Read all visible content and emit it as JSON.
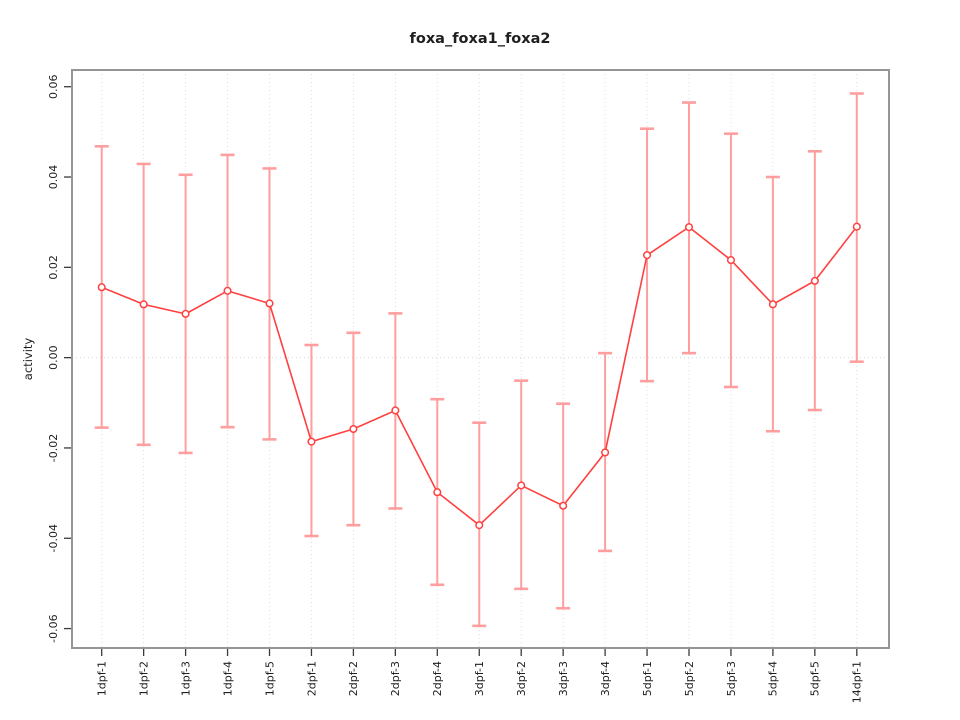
{
  "figure": {
    "title": "foxa_foxa1_foxa2",
    "ylabel": "activity"
  },
  "chart_data": {
    "type": "line",
    "title": "foxa_foxa1_foxa2",
    "xlabel": "",
    "ylabel": "activity",
    "legend": "none",
    "marker": "open-circle",
    "error_bars": true,
    "grid": "dotted vertical gridline at each category; dotted horizontal line at y=0",
    "categories": [
      "1dpf-1",
      "1dpf-2",
      "1dpf-3",
      "1dpf-4",
      "1dpf-5",
      "2dpf-1",
      "2dpf-2",
      "2dpf-3",
      "2dpf-4",
      "3dpf-1",
      "3dpf-2",
      "3dpf-3",
      "3dpf-4",
      "5dpf-1",
      "5dpf-2",
      "5dpf-3",
      "5dpf-4",
      "5dpf-5",
      "14dpf-1"
    ],
    "series": [
      {
        "name": "activity",
        "values": [
          0.0156,
          0.0118,
          0.0097,
          0.0148,
          0.012,
          -0.0186,
          -0.0158,
          -0.0117,
          -0.0298,
          -0.0371,
          -0.0283,
          -0.0328,
          -0.021,
          0.0227,
          0.0289,
          0.0216,
          0.0118,
          0.017,
          0.029
        ],
        "upper": [
          0.0468,
          0.0429,
          0.0405,
          0.0449,
          0.0419,
          0.0028,
          0.0055,
          0.0098,
          -0.0092,
          -0.0144,
          -0.0051,
          -0.0102,
          0.001,
          0.0507,
          0.0565,
          0.0496,
          0.04,
          0.0457,
          0.0585
        ],
        "lower": [
          -0.0155,
          -0.0193,
          -0.0211,
          -0.0154,
          -0.0181,
          -0.0395,
          -0.0371,
          -0.0334,
          -0.0503,
          -0.0594,
          -0.0512,
          -0.0555,
          -0.0428,
          -0.0052,
          0.001,
          -0.0065,
          -0.0163,
          -0.0116,
          -0.0009
        ]
      }
    ],
    "ylim": [
      -0.0643,
      0.0637
    ],
    "yticks": [
      -0.06,
      -0.04,
      -0.02,
      0,
      0.02,
      0.04,
      0.06
    ],
    "ytick_labels": [
      "-0.06",
      "-0.04",
      "-0.02",
      "0.00",
      "0.02",
      "0.04",
      "0.06"
    ],
    "colors": {
      "line": "#ff4040",
      "marker": "#ff4040",
      "error_bar": "#ff9e9e",
      "gridline": "#dcdcdc",
      "zero_line": "#d8d8d8",
      "box": "#959595",
      "tick": "#3a3a3a",
      "text": "#1f1f1f",
      "background": "#ffffff"
    }
  }
}
